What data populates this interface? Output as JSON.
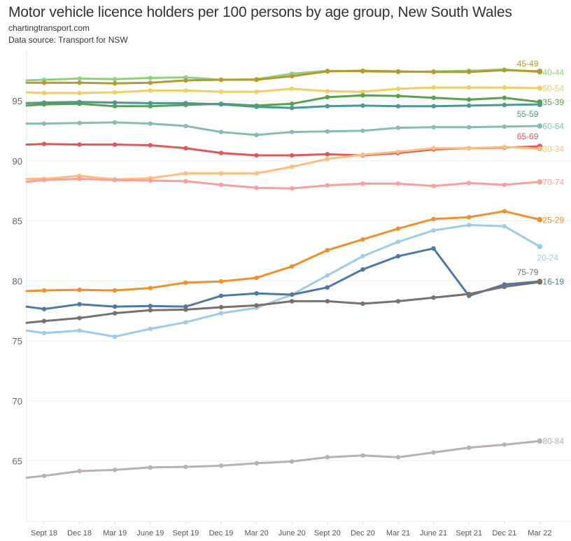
{
  "header": {
    "title": "Motor vehicle licence holders per 100 persons by age group, New South Wales",
    "site": "chartingtransport.com",
    "source": "Data source: Transport for NSW"
  },
  "chart_data": {
    "type": "line",
    "title": "Motor vehicle licence holders per 100 persons by age group, New South Wales",
    "xlabel": "",
    "ylabel": "",
    "ylim": [
      61.5,
      98.5
    ],
    "yticks": [
      65,
      70,
      75,
      80,
      85,
      90,
      95
    ],
    "grid": true,
    "legend": "direct-labels-right",
    "categories": [
      "Sept 18",
      "Dec 18",
      "Mar 19",
      "June 19",
      "Sept 19",
      "Dec 19",
      "Mar 20",
      "June 20",
      "Sept 20",
      "Dec 20",
      "Mar 21",
      "June 21",
      "Sept 21",
      "Dec 21",
      "Mar 22"
    ],
    "series": [
      {
        "name": "40-44",
        "color": "#8CD17D",
        "label_pos": "end",
        "start": 96.7,
        "values": [
          96.75,
          96.85,
          96.8,
          96.9,
          96.95,
          96.75,
          96.8,
          97.25,
          97.5,
          97.45,
          97.4,
          97.45,
          97.5,
          97.6,
          97.4
        ]
      },
      {
        "name": "45-49",
        "color": "#B6992D",
        "label_pos": "above",
        "start": 96.5,
        "values": [
          96.5,
          96.5,
          96.45,
          96.5,
          96.7,
          96.75,
          96.75,
          97.05,
          97.45,
          97.5,
          97.45,
          97.4,
          97.4,
          97.55,
          97.45
        ]
      },
      {
        "name": "50-54",
        "color": "#F1CE63",
        "label_pos": "end",
        "start": 95.7,
        "values": [
          95.65,
          95.65,
          95.7,
          95.85,
          95.85,
          95.75,
          95.75,
          96.0,
          95.8,
          95.75,
          96.0,
          96.1,
          96.1,
          96.1,
          96.05
        ]
      },
      {
        "name": "35-39",
        "color": "#59A14F",
        "label_pos": "end",
        "start": 94.6,
        "values": [
          94.7,
          94.75,
          94.55,
          94.55,
          94.65,
          94.75,
          94.6,
          94.75,
          95.3,
          95.45,
          95.4,
          95.25,
          95.1,
          95.25,
          94.9
        ]
      },
      {
        "name": "55-59",
        "color": "#499894",
        "label_pos": "below",
        "start": 94.8,
        "values": [
          94.85,
          94.9,
          94.85,
          94.8,
          94.8,
          94.7,
          94.5,
          94.4,
          94.55,
          94.6,
          94.55,
          94.55,
          94.6,
          94.65,
          94.7
        ]
      },
      {
        "name": "60-64",
        "color": "#86BCB6",
        "label_pos": "end",
        "start": 93.1,
        "values": [
          93.1,
          93.15,
          93.2,
          93.1,
          92.9,
          92.4,
          92.15,
          92.4,
          92.45,
          92.5,
          92.75,
          92.8,
          92.8,
          92.85,
          92.9
        ]
      },
      {
        "name": "65-69",
        "color": "#E15759",
        "label_pos": "above",
        "start": 91.35,
        "values": [
          91.4,
          91.35,
          91.35,
          91.3,
          91.05,
          90.65,
          90.45,
          90.45,
          90.55,
          90.45,
          90.65,
          90.95,
          91.05,
          91.1,
          91.2
        ]
      },
      {
        "name": "30-34",
        "color": "#FFBE7D",
        "label_pos": "end",
        "start": 88.5,
        "values": [
          88.5,
          88.75,
          88.45,
          88.55,
          88.95,
          88.95,
          88.95,
          89.5,
          90.15,
          90.5,
          90.75,
          91.05,
          91.05,
          91.15,
          91.0
        ]
      },
      {
        "name": "70-74",
        "color": "#FF9D9A",
        "label_pos": "end",
        "start": 88.25,
        "values": [
          88.4,
          88.5,
          88.4,
          88.35,
          88.3,
          88.0,
          87.75,
          87.7,
          87.95,
          88.1,
          88.1,
          87.9,
          88.15,
          88.0,
          88.25
        ]
      },
      {
        "name": "25-29",
        "color": "#F28E2B",
        "label_pos": "end",
        "start": 79.15,
        "values": [
          79.2,
          79.25,
          79.2,
          79.4,
          79.85,
          79.95,
          80.25,
          81.2,
          82.55,
          83.45,
          84.35,
          85.15,
          85.3,
          85.8,
          85.1
        ]
      },
      {
        "name": "20-24",
        "color": "#A0CBE8",
        "label_pos": "below",
        "start": 75.85,
        "values": [
          75.65,
          75.85,
          75.35,
          76.0,
          76.55,
          77.3,
          77.75,
          78.85,
          80.45,
          82.05,
          83.25,
          84.2,
          84.65,
          84.55,
          82.85
        ]
      },
      {
        "name": "16-19",
        "color": "#4E79A7",
        "label_pos": "end",
        "start": 77.85,
        "values": [
          77.65,
          78.05,
          77.85,
          77.9,
          77.85,
          78.75,
          78.95,
          78.85,
          79.45,
          80.95,
          82.05,
          82.7,
          78.75,
          79.7,
          79.95
        ]
      },
      {
        "name": "75-79",
        "color": "#79706E",
        "label_pos": "above",
        "start": 76.5,
        "values": [
          76.65,
          76.9,
          77.3,
          77.55,
          77.6,
          77.8,
          77.95,
          78.3,
          78.3,
          78.1,
          78.3,
          78.6,
          78.9,
          79.5,
          79.9
        ]
      },
      {
        "name": "80-84",
        "color": "#BAB0AC",
        "label_pos": "end",
        "start": 63.6,
        "values": [
          63.75,
          64.15,
          64.25,
          64.45,
          64.5,
          64.6,
          64.8,
          64.95,
          65.3,
          65.45,
          65.3,
          65.7,
          66.1,
          66.35,
          66.65
        ]
      }
    ]
  }
}
